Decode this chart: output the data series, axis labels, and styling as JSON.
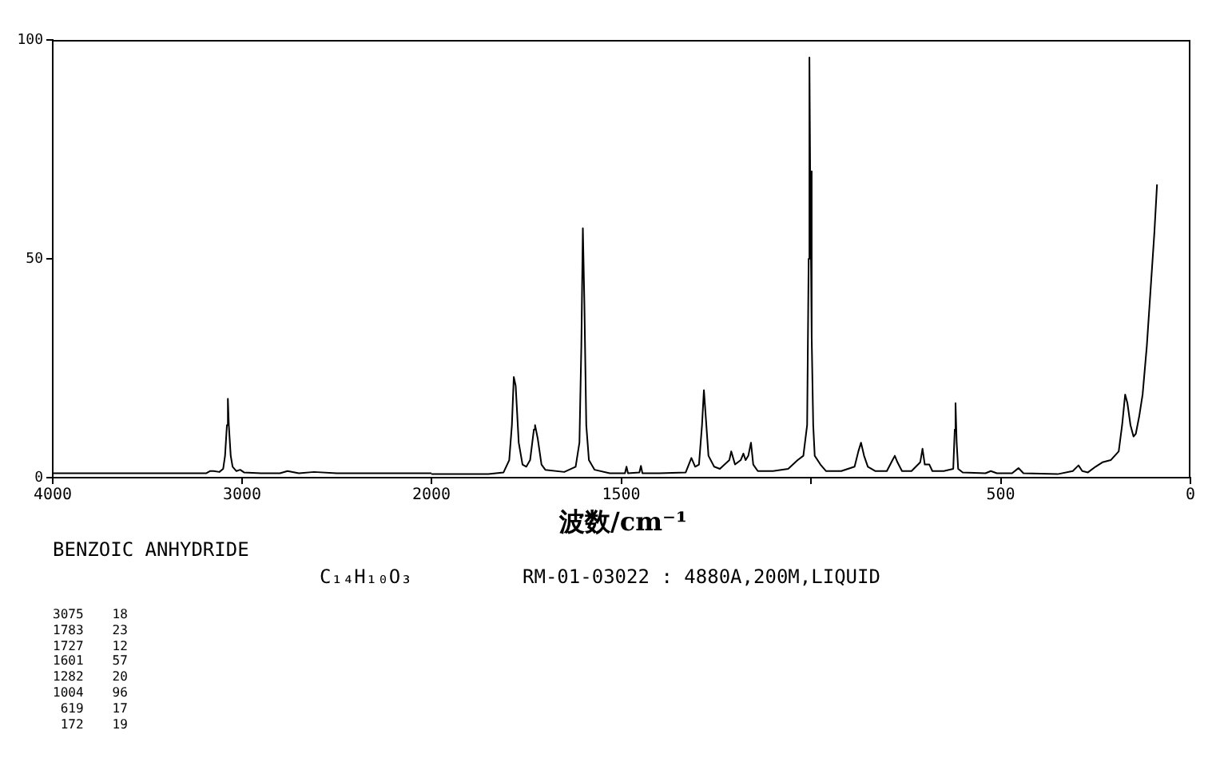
{
  "chart_data": [
    {
      "type": "line",
      "title": "BENZOIC ANHYDRIDE",
      "subtitle": "C₁₄H₁₀O₃",
      "annotations": [
        "RM-01-03022 : 4880A,200M,LIQUID",
        "3075 18",
        "1783 23",
        "1727 12",
        "1601 57",
        "1282 20",
        "1004 96",
        "619 17",
        "172 19"
      ],
      "x": [
        4000,
        3300,
        3190,
        3170,
        3150,
        3120,
        3100,
        3090,
        3080,
        3075,
        3070,
        3060,
        3050,
        3030,
        3010,
        2990,
        2900,
        2800,
        2760,
        2700,
        2620,
        2500,
        2300,
        2100,
        2000
      ],
      "values": [
        1,
        1,
        1,
        1.5,
        1.5,
        1.3,
        2,
        5,
        12,
        18,
        12,
        5,
        2.5,
        1.5,
        1.8,
        1.2,
        1,
        1,
        1.5,
        1,
        1.3,
        1,
        1,
        1,
        1
      ],
      "color": "#000000",
      "marker": "none",
      "grid": false,
      "xlim": [
        4000,
        2000
      ],
      "xticks": [
        4000,
        3000,
        2000
      ],
      "ylim": [
        0,
        100
      ],
      "yticks": [
        0,
        50,
        100
      ]
    },
    {
      "type": "line",
      "xlabel": "波数/cm⁻¹",
      "x": [
        2000,
        1850,
        1810,
        1795,
        1788,
        1783,
        1778,
        1770,
        1760,
        1750,
        1740,
        1730,
        1727,
        1720,
        1710,
        1700,
        1650,
        1620,
        1610,
        1605,
        1601,
        1597,
        1592,
        1585,
        1570,
        1530,
        1490,
        1486,
        1482,
        1452,
        1448,
        1444,
        1400,
        1330,
        1315,
        1305,
        1295,
        1287,
        1282,
        1278,
        1270,
        1255,
        1240,
        1215,
        1210,
        1200,
        1185,
        1178,
        1172,
        1165,
        1158,
        1152,
        1140,
        1100,
        1060,
        1035,
        1020,
        1010,
        1006,
        1004,
        1002,
        998,
        994,
        990,
        975,
        960,
        920,
        885,
        875,
        868,
        860,
        850,
        830,
        800,
        785,
        779,
        772,
        760,
        735,
        712,
        706,
        700,
        688,
        680,
        650,
        625,
        621,
        619,
        616,
        612,
        600,
        540,
        526,
        510,
        470,
        453,
        440,
        350,
        310,
        295,
        285,
        270,
        250,
        232,
        210,
        189,
        180,
        172,
        166,
        158,
        150,
        144,
        135,
        126,
        115,
        105,
        95,
        88
      ],
      "values": [
        0.8,
        0.8,
        1.2,
        4,
        12,
        23,
        21,
        8,
        3,
        2.5,
        4,
        11,
        12,
        9,
        3,
        1.8,
        1.3,
        2.5,
        8,
        30,
        57,
        40,
        12,
        4,
        1.8,
        1,
        1,
        2.5,
        1,
        1.2,
        2.7,
        1,
        1,
        1.2,
        4.5,
        2.5,
        3,
        12,
        20,
        15,
        5,
        2.5,
        2,
        4,
        6,
        3,
        4,
        5.5,
        4,
        5,
        8,
        3,
        1.5,
        1.5,
        2,
        4,
        5,
        12,
        50,
        96,
        70,
        32,
        12,
        5,
        3,
        1.5,
        1.5,
        2.5,
        6,
        8,
        5,
        2.5,
        1.5,
        1.5,
        4,
        5,
        3.5,
        1.5,
        1.5,
        3.5,
        6.6,
        3,
        3,
        1.5,
        1.5,
        2,
        11,
        17,
        8,
        2,
        1.2,
        1,
        1.5,
        1,
        1,
        2.2,
        1,
        0.8,
        1.5,
        2.8,
        1.5,
        1.2,
        2.5,
        3.5,
        4,
        6,
        12,
        19,
        17,
        12,
        9.4,
        10,
        14,
        19,
        30,
        43,
        56,
        67
      ],
      "color": "#000000",
      "marker": "none",
      "grid": false,
      "xlim": [
        2000,
        0
      ],
      "xticks": [
        1500,
        {
          "value": 1000,
          "label": null
        },
        500,
        0
      ],
      "ylim": [
        0,
        100
      ],
      "tick_labels": "x"
    }
  ]
}
